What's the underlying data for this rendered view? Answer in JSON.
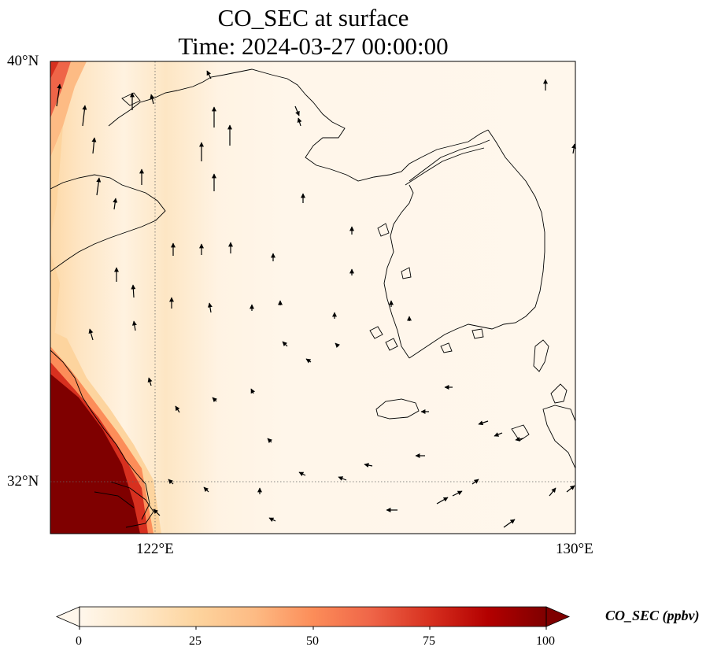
{
  "title": "CO_SEC at surface",
  "subtitle": "Time: 2024-03-27 00:00:00",
  "variable": "CO_SEC",
  "units": "ppbv",
  "colorbar": {
    "label": "CO_SEC (ppbv)",
    "ticks": [
      "0",
      "25",
      "50",
      "75",
      "100"
    ],
    "range": [
      0,
      100
    ],
    "extend": "both",
    "colormap": "OrRd",
    "colors": [
      "#fff7ec",
      "#fee8c8",
      "#fdd49e",
      "#fdbb84",
      "#fc8d59",
      "#ef6548",
      "#d7301f",
      "#b30000",
      "#7f0000"
    ]
  },
  "axes": {
    "lat_ticks": [
      "40°N",
      "32°N"
    ],
    "lon_ticks": [
      "122°E",
      "130°E"
    ],
    "lon_range": [
      120,
      130
    ],
    "lat_range": [
      31,
      40
    ],
    "gridlines": "dotted, 122°E and 32°N"
  },
  "chart_data": {
    "type": "heatmap",
    "title": "CO_SEC at surface",
    "subtitle": "Time: 2024-03-27 00:00:00",
    "xlabel": "",
    "ylabel": "",
    "xlim": [
      120,
      130
    ],
    "ylim": [
      31,
      40
    ],
    "value_range": [
      0,
      100
    ],
    "overlay": "wind vectors",
    "features": [
      "coastlines",
      "Korean peninsula",
      "Jeju island",
      "Shandong peninsula",
      "Yangtze river estuary"
    ]
  }
}
